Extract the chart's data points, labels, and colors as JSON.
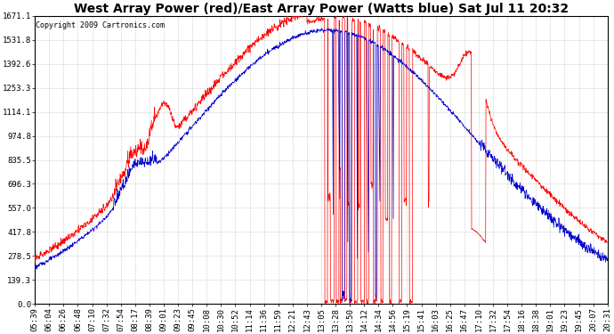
{
  "title": "West Array Power (red)/East Array Power (Watts blue) Sat Jul 11 20:32",
  "copyright": "Copyright 2009 Cartronics.com",
  "background_color": "#ffffff",
  "plot_bg_color": "#ffffff",
  "grid_color": "#c8c8c8",
  "red_color": "#ff0000",
  "blue_color": "#0000cc",
  "ylim_min": 0.0,
  "ylim_max": 1671.1,
  "yticks": [
    0.0,
    139.3,
    278.5,
    417.8,
    557.0,
    696.3,
    835.5,
    974.8,
    1114.1,
    1253.3,
    1392.6,
    1531.8,
    1671.1
  ],
  "xtick_labels": [
    "05:39",
    "06:04",
    "06:26",
    "06:48",
    "07:10",
    "07:32",
    "07:54",
    "08:17",
    "08:39",
    "09:01",
    "09:23",
    "09:45",
    "10:08",
    "10:30",
    "10:52",
    "11:14",
    "11:36",
    "11:59",
    "12:21",
    "12:43",
    "13:05",
    "13:28",
    "13:50",
    "14:12",
    "14:34",
    "14:56",
    "15:19",
    "15:41",
    "16:03",
    "16:25",
    "16:47",
    "17:10",
    "17:32",
    "17:54",
    "18:16",
    "18:38",
    "19:01",
    "19:23",
    "19:45",
    "20:07",
    "20:31"
  ],
  "title_fontsize": 10,
  "tick_fontsize": 6.5,
  "copyright_fontsize": 6
}
